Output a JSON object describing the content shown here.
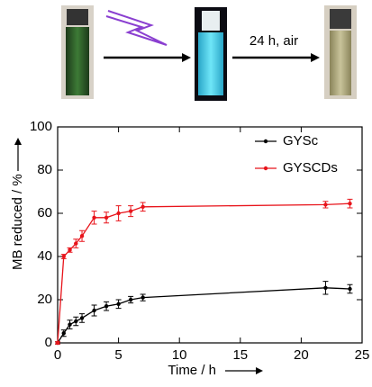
{
  "scheme": {
    "step_label": "24 h, air"
  },
  "chart_data": {
    "type": "line",
    "x_label": "Time / h",
    "y_label": "MB reduced / %",
    "x": [
      0,
      0.5,
      1,
      1.5,
      2,
      3,
      4,
      5,
      6,
      7,
      22,
      24
    ],
    "series": [
      {
        "name": "GYSc",
        "color": "#000000",
        "values": [
          0,
          4.5,
          8.5,
          10,
          11.5,
          15,
          17,
          18,
          20,
          21,
          25.5,
          25
        ],
        "errors": [
          0.5,
          1.5,
          2,
          2,
          2,
          2.5,
          2,
          2,
          1.5,
          1.5,
          3,
          2
        ]
      },
      {
        "name": "GYSCDs",
        "color": "#e8141b",
        "values": [
          0,
          40,
          43,
          46,
          49.5,
          58,
          58,
          60,
          61,
          63,
          64,
          64.5
        ],
        "errors": [
          0.5,
          1,
          1,
          2,
          2.5,
          3,
          2.5,
          3.5,
          2.5,
          2,
          1.5,
          2
        ]
      }
    ],
    "xlim": [
      0,
      25
    ],
    "xticks": [
      0,
      5,
      10,
      15,
      20,
      25
    ],
    "ylim": [
      0,
      100
    ],
    "yticks": [
      0,
      20,
      40,
      60,
      80,
      100
    ],
    "legend": "upper right"
  }
}
